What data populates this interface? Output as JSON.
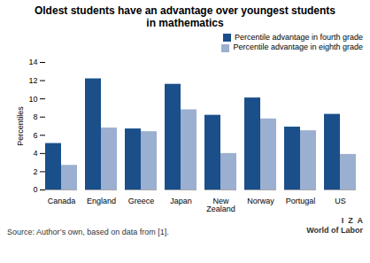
{
  "chart_data": {
    "type": "bar",
    "title": "Oldest students have an advantage over youngest students\nin mathematics",
    "categories": [
      "Canada",
      "England",
      "Greece",
      "Japan",
      "New\nZealand",
      "Norway",
      "Portugal",
      "US"
    ],
    "series": [
      {
        "name": "Percentile advantage in fourth grade",
        "color": "#1A4F8A",
        "values": [
          5.1,
          12.2,
          6.7,
          11.6,
          8.2,
          10.1,
          6.9,
          8.3
        ]
      },
      {
        "name": "Percentile advantage in eighth grade",
        "color": "#9BAFD0",
        "values": [
          2.7,
          6.8,
          6.4,
          8.8,
          4.0,
          7.8,
          6.5,
          3.9
        ]
      }
    ],
    "ylabel": "Percentiles",
    "ylim": [
      0,
      14
    ],
    "yticks": [
      0,
      2,
      4,
      6,
      8,
      10,
      12,
      14
    ],
    "grid": false,
    "legend": "upper right",
    "annotations": [
      "Source: Author’s own, based on data from [1].",
      "I  Z  A",
      "World of Labor"
    ]
  }
}
